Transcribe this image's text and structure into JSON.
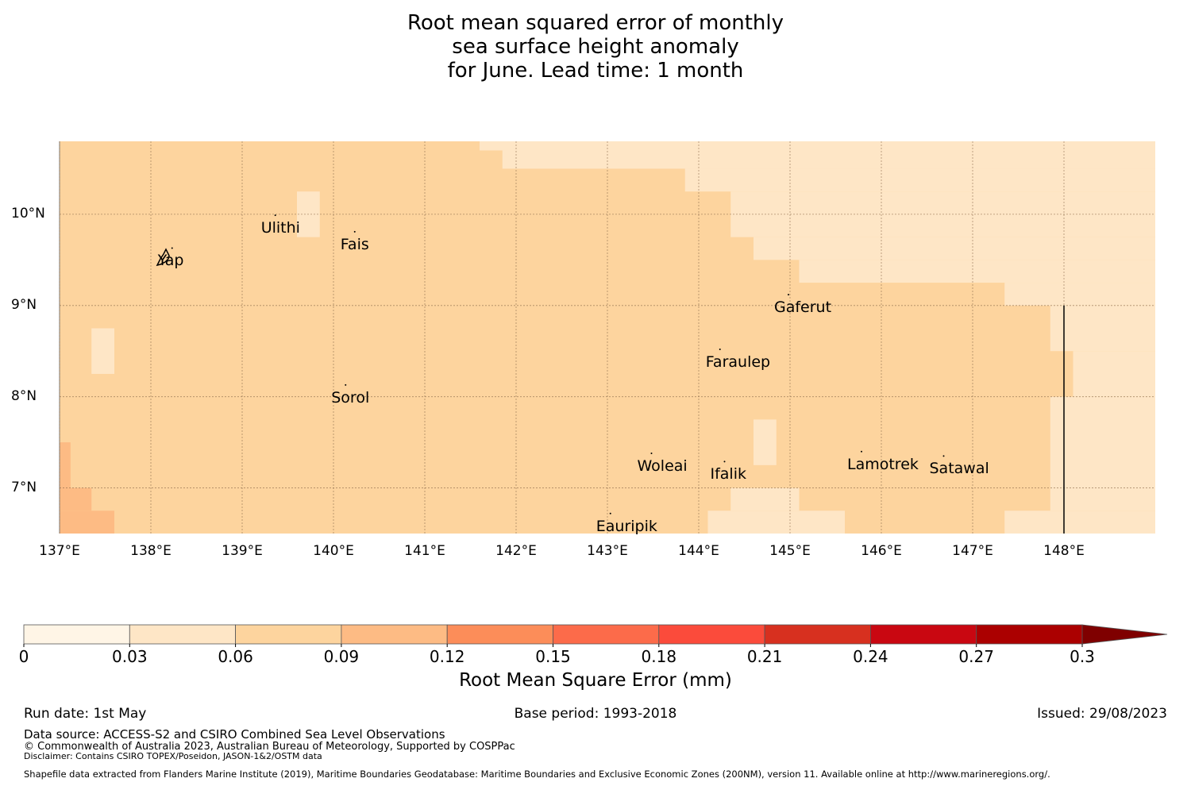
{
  "title": {
    "line1": "Root mean squared error of monthly",
    "line2": "sea surface height anomaly",
    "line3": "for June. Lead time: 1 month"
  },
  "map": {
    "lon_range": [
      137,
      149
    ],
    "lat_range": [
      6.5,
      10.8
    ],
    "x_ticks": [
      {
        "value": 137,
        "label": "137°E"
      },
      {
        "value": 138,
        "label": "138°E"
      },
      {
        "value": 139,
        "label": "139°E"
      },
      {
        "value": 140,
        "label": "140°E"
      },
      {
        "value": 141,
        "label": "141°E"
      },
      {
        "value": 142,
        "label": "142°E"
      },
      {
        "value": 143,
        "label": "143°E"
      },
      {
        "value": 144,
        "label": "144°E"
      },
      {
        "value": 145,
        "label": "145°E"
      },
      {
        "value": 146,
        "label": "146°E"
      },
      {
        "value": 147,
        "label": "147°E"
      },
      {
        "value": 148,
        "label": "148°E"
      }
    ],
    "y_ticks": [
      {
        "value": 10,
        "label": "10°N"
      },
      {
        "value": 9,
        "label": "9°N"
      },
      {
        "value": 8,
        "label": "8°N"
      },
      {
        "value": 7,
        "label": "7°N"
      }
    ],
    "background_bin": "0.06-0.09",
    "regions": [
      {
        "bin": "0.03-0.06",
        "lon": [
          141.6,
          149
        ],
        "lat": [
          10.7,
          10.8
        ]
      },
      {
        "bin": "0.03-0.06",
        "lon": [
          141.85,
          149
        ],
        "lat": [
          10.5,
          10.7
        ]
      },
      {
        "bin": "0.03-0.06",
        "lon": [
          143.85,
          149
        ],
        "lat": [
          10.25,
          10.5
        ]
      },
      {
        "bin": "0.03-0.06",
        "lon": [
          144.35,
          149
        ],
        "lat": [
          9.75,
          10.25
        ]
      },
      {
        "bin": "0.03-0.06",
        "lon": [
          144.6,
          149
        ],
        "lat": [
          9.5,
          9.75
        ]
      },
      {
        "bin": "0.03-0.06",
        "lon": [
          145.1,
          149
        ],
        "lat": [
          9.25,
          9.5
        ]
      },
      {
        "bin": "0.03-0.06",
        "lon": [
          147.35,
          149
        ],
        "lat": [
          9.0,
          9.25
        ]
      },
      {
        "bin": "0.03-0.06",
        "lon": [
          147.85,
          149
        ],
        "lat": [
          8.5,
          9.0
        ]
      },
      {
        "bin": "0.03-0.06",
        "lon": [
          148.1,
          149
        ],
        "lat": [
          8.0,
          8.5
        ]
      },
      {
        "bin": "0.03-0.06",
        "lon": [
          147.85,
          149
        ],
        "lat": [
          6.75,
          8.0
        ]
      },
      {
        "bin": "0.03-0.06",
        "lon": [
          147.35,
          149
        ],
        "lat": [
          6.5,
          6.75
        ]
      },
      {
        "bin": "0.03-0.06",
        "lon": [
          144.35,
          145.1
        ],
        "lat": [
          6.75,
          7.0
        ]
      },
      {
        "bin": "0.03-0.06",
        "lon": [
          144.1,
          145.6
        ],
        "lat": [
          6.5,
          6.75
        ]
      },
      {
        "bin": "0.03-0.06",
        "lon": [
          144.6,
          144.85
        ],
        "lat": [
          7.25,
          7.75
        ]
      },
      {
        "bin": "0.03-0.06",
        "lon": [
          139.6,
          139.85
        ],
        "lat": [
          9.75,
          10.25
        ]
      },
      {
        "bin": "0.03-0.06",
        "lon": [
          137.35,
          137.6
        ],
        "lat": [
          8.25,
          8.75
        ]
      },
      {
        "bin": "0.09-0.12",
        "lon": [
          137,
          137.12
        ],
        "lat": [
          7.0,
          7.5
        ]
      },
      {
        "bin": "0.09-0.12",
        "lon": [
          137,
          137.35
        ],
        "lat": [
          6.75,
          7.0
        ]
      },
      {
        "bin": "0.09-0.12",
        "lon": [
          137,
          137.6
        ],
        "lat": [
          6.5,
          6.75
        ]
      }
    ],
    "boundary_line": {
      "lon": 148,
      "lat": [
        6.5,
        9.0
      ]
    },
    "places": [
      {
        "name": "Yap",
        "lon": 138.25,
        "lat": 9.49
      },
      {
        "name": "Ulithi",
        "lon": 139.38,
        "lat": 9.85
      },
      {
        "name": "Fais",
        "lon": 140.25,
        "lat": 9.67
      },
      {
        "name": "Gaferut",
        "lon": 145.0,
        "lat": 8.98
      },
      {
        "name": "Faraulep",
        "lon": 144.25,
        "lat": 8.38
      },
      {
        "name": "Sorol",
        "lon": 140.15,
        "lat": 7.99
      },
      {
        "name": "Woleai",
        "lon": 143.5,
        "lat": 7.24
      },
      {
        "name": "Ifalik",
        "lon": 144.3,
        "lat": 7.15
      },
      {
        "name": "Lamotrek",
        "lon": 145.8,
        "lat": 7.26
      },
      {
        "name": "Satawal",
        "lon": 146.7,
        "lat": 7.21
      },
      {
        "name": "Eauripik",
        "lon": 143.05,
        "lat": 6.58
      }
    ]
  },
  "colorbar": {
    "bins": [
      {
        "from": 0.0,
        "to": 0.03,
        "color": "#fff5e6"
      },
      {
        "from": 0.03,
        "to": 0.06,
        "color": "#fee6c6"
      },
      {
        "from": 0.06,
        "to": 0.09,
        "color": "#fdd49e"
      },
      {
        "from": 0.09,
        "to": 0.12,
        "color": "#fdbb84"
      },
      {
        "from": 0.12,
        "to": 0.15,
        "color": "#fc8d59"
      },
      {
        "from": 0.15,
        "to": 0.18,
        "color": "#fc6b4a"
      },
      {
        "from": 0.18,
        "to": 0.21,
        "color": "#fb4b3b"
      },
      {
        "from": 0.21,
        "to": 0.24,
        "color": "#d7301f"
      },
      {
        "from": 0.24,
        "to": 0.27,
        "color": "#c90711"
      },
      {
        "from": 0.27,
        "to": 0.3,
        "color": "#ab0000"
      }
    ],
    "extend_color": "#7f0000",
    "ticks": [
      "0",
      "0.03",
      "0.06",
      "0.09",
      "0.12",
      "0.15",
      "0.18",
      "0.21",
      "0.24",
      "0.27",
      "0.3"
    ],
    "label": "Root Mean Square Error (mm)"
  },
  "footer": {
    "run_date": "Run date: 1st May",
    "base_period": "Base period: 1993-2018",
    "issued": "Issued: 29/08/2023",
    "data_source": "Data source: ACCESS-S2 and CSIRO Combined Sea Level Observations",
    "copyright": "© Commonwealth of Australia 2023, Australian Bureau of Meteorology, Supported by COSPPac",
    "disclaimer": "Disclaimer: Contains CSIRO TOPEX/Poseidon, JASON-1&2/OSTM data",
    "shapefile": "Shapefile data extracted from Flanders Marine Institute (2019), Maritime Boundaries Geodatabase: Maritime Boundaries and Exclusive Economic Zones (200NM), version 11. Available online at http://www.marineregions.org/."
  }
}
